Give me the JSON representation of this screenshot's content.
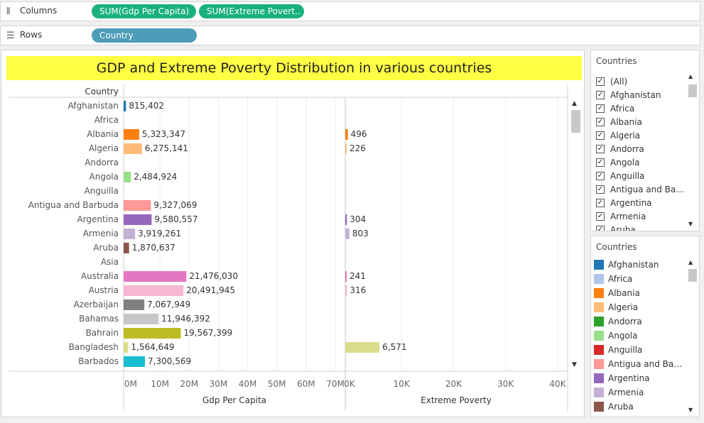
{
  "shelves": {
    "columns": {
      "label": "Columns",
      "pills": [
        "SUM(Gdp Per Capita)",
        "SUM(Extreme Povert.."
      ]
    },
    "rows": {
      "label": "Rows",
      "pills": [
        "Country"
      ]
    }
  },
  "chart_title": "GDP and Extreme Poverty Distribution in various countries",
  "chart_data": {
    "type": "bar",
    "row_header": "Country",
    "categories": [
      "Afghanistan",
      "Africa",
      "Albania",
      "Algeria",
      "Andorra",
      "Angola",
      "Anguilla",
      "Antigua and Barbuda",
      "Argentina",
      "Armenia",
      "Aruba",
      "Asia",
      "Australia",
      "Austria",
      "Azerbaijan",
      "Bahamas",
      "Bahrain",
      "Bangladesh",
      "Barbados"
    ],
    "colors": [
      "#1f77b4",
      "#aec7e8",
      "#ff7f0e",
      "#ffbb78",
      "#2ca02c",
      "#98df8a",
      "#d62728",
      "#ff9896",
      "#9467bd",
      "#c5b0d5",
      "#8c564b",
      "#c49c94",
      "#e377c2",
      "#f7b6d2",
      "#7f7f7f",
      "#c7c7c7",
      "#bcbd22",
      "#dbdb8d",
      "#17becf"
    ],
    "series": [
      {
        "name": "Gdp Per Capita",
        "xlabel": "Gdp Per Capita",
        "ticks": [
          "0M",
          "10M",
          "20M",
          "30M",
          "40M",
          "50M",
          "60M",
          "70M"
        ],
        "xlim": [
          0,
          70000000
        ],
        "values": [
          815402,
          null,
          5323347,
          6275141,
          null,
          2484924,
          null,
          9327069,
          9580557,
          3919261,
          1870637,
          null,
          21476030,
          20491945,
          7067949,
          11946392,
          19567399,
          1564649,
          7300569
        ],
        "labels": [
          "815,402",
          "",
          "5,323,347",
          "6,275,141",
          "",
          "2,484,924",
          "",
          "9,327,069",
          "9,580,557",
          "3,919,261",
          "1,870,637",
          "",
          "21,476,030",
          "20,491,945",
          "7,067,949",
          "11,946,392",
          "19,567,399",
          "1,564,649",
          "7,300,569"
        ]
      },
      {
        "name": "Extreme Poverty",
        "xlabel": "Extreme Poverty",
        "ticks": [
          "0K",
          "10K",
          "20K",
          "30K",
          "40K"
        ],
        "xlim": [
          0,
          40000
        ],
        "values": [
          null,
          null,
          496,
          226,
          null,
          null,
          null,
          null,
          304,
          803,
          null,
          null,
          241,
          316,
          null,
          null,
          null,
          6571,
          null
        ],
        "labels": [
          "",
          "",
          "496",
          "226",
          "",
          "",
          "",
          "",
          "304",
          "803",
          "",
          "",
          "241",
          "316",
          "",
          "",
          "",
          "6,571",
          ""
        ]
      }
    ],
    "grid": true
  },
  "filter": {
    "title": "Countries",
    "items": [
      "(All)",
      "Afghanistan",
      "Africa",
      "Albania",
      "Algeria",
      "Andorra",
      "Angola",
      "Anguilla",
      "Antigua and Bar...",
      "Argentina",
      "Armenia",
      "Aruba"
    ],
    "checkmark": "✓"
  },
  "legend": {
    "title": "Countries",
    "items": [
      {
        "label": "Afghanistan",
        "color": "#1f77b4"
      },
      {
        "label": "Africa",
        "color": "#aec7e8"
      },
      {
        "label": "Albania",
        "color": "#ff7f0e"
      },
      {
        "label": "Algeria",
        "color": "#ffbb78"
      },
      {
        "label": "Andorra",
        "color": "#2ca02c"
      },
      {
        "label": "Angola",
        "color": "#98df8a"
      },
      {
        "label": "Anguilla",
        "color": "#d62728"
      },
      {
        "label": "Antigua and Barb..",
        "color": "#ff9896"
      },
      {
        "label": "Argentina",
        "color": "#9467bd"
      },
      {
        "label": "Armenia",
        "color": "#c5b0d5"
      },
      {
        "label": "Aruba",
        "color": "#8c564b"
      }
    ]
  },
  "icons": {
    "columns": "columns-icon",
    "rows": "rows-icon",
    "scroll_up": "▲",
    "scroll_down": "▼"
  }
}
